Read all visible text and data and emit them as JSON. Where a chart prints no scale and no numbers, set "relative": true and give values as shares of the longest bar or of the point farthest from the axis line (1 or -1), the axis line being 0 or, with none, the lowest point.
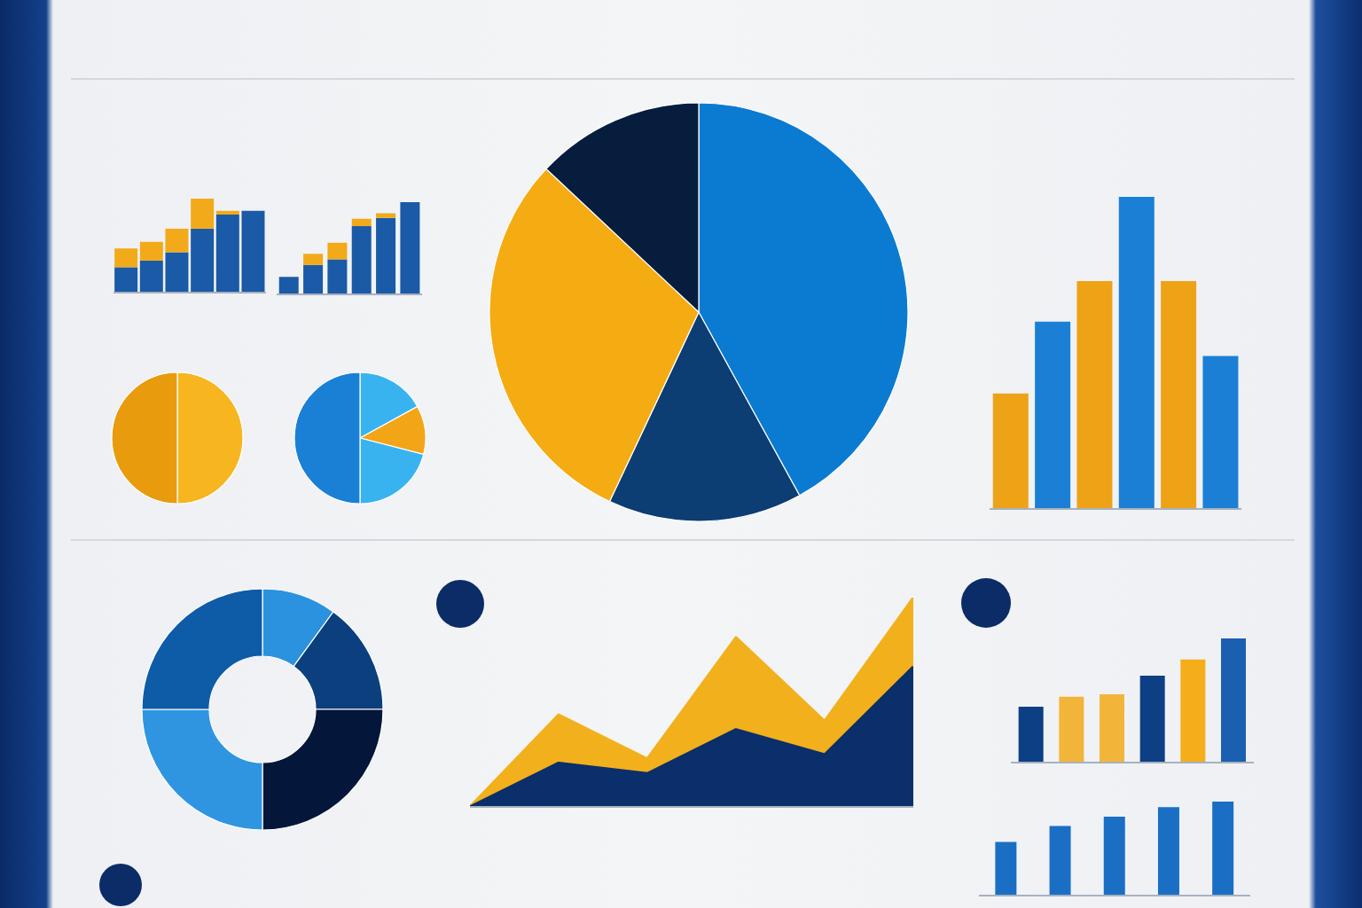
{
  "chart_data": [
    {
      "type": "bar",
      "stacked": true,
      "relative": true,
      "categories": [
        null,
        null,
        null,
        null,
        null,
        null
      ],
      "series": [
        {
          "color": "#1b5aa6",
          "values": [
            0.27,
            0.34,
            0.43,
            0.68,
            0.83,
            0.87
          ]
        },
        {
          "color": "#f2aa1a",
          "values": [
            0.2,
            0.2,
            0.25,
            0.32,
            0.04,
            null
          ]
        }
      ]
    },
    {
      "type": "bar",
      "stacked": true,
      "relative": true,
      "categories": [
        null,
        null,
        null,
        null,
        null,
        null
      ],
      "series": [
        {
          "color": "#1b5aa6",
          "values": [
            0.19,
            0.32,
            0.38,
            0.74,
            0.83,
            1.0
          ]
        },
        {
          "color": "#f2aa1a",
          "values": [
            null,
            0.12,
            0.18,
            0.08,
            0.05,
            null
          ]
        }
      ]
    },
    {
      "type": "pie",
      "categories": [
        null,
        null
      ],
      "values": [
        50,
        50
      ],
      "colors": [
        "#f7b520",
        "#e99b0e"
      ]
    },
    {
      "type": "pie",
      "categories": [
        null,
        null,
        null,
        null
      ],
      "values": [
        17,
        12,
        21,
        50
      ],
      "colors": [
        "#38b3f0",
        "#f2a516",
        "#38b3f0",
        "#1a80d6"
      ]
    },
    {
      "type": "pie",
      "categories": [
        null,
        null,
        null,
        null
      ],
      "values": [
        42,
        15,
        30,
        13
      ],
      "colors": [
        "#0b7bd2",
        "#0c3d73",
        "#f5ab12",
        "#061d3d"
      ]
    },
    {
      "type": "bar",
      "relative": true,
      "categories": [
        null,
        null,
        null,
        null,
        null,
        null
      ],
      "values": [
        0.37,
        0.6,
        0.73,
        1.0,
        0.73,
        0.49
      ],
      "colors": [
        "#eea316",
        "#1b7fd6",
        "#eea316",
        "#1b7fd6",
        "#eea316",
        "#1b7fd6"
      ]
    },
    {
      "type": "donut",
      "categories": [
        null,
        null,
        null,
        null,
        null
      ],
      "values": [
        10,
        15,
        25,
        25,
        25
      ],
      "colors": [
        "#2a92de",
        "#0b3f7e",
        "#04173a",
        "#2f95e0",
        "#0e5ba8"
      ]
    },
    {
      "type": "area",
      "relative": true,
      "categories": [
        null,
        null,
        null,
        null,
        null,
        null
      ],
      "series": [
        {
          "color": "#f2b01c",
          "values": [
            0,
            0.44,
            0.23,
            0.81,
            0.41,
            1.0
          ]
        },
        {
          "color": "#0a2f6a",
          "values": [
            0,
            0.21,
            0.16,
            0.37,
            0.25,
            0.67
          ]
        }
      ]
    },
    {
      "type": "bar",
      "relative": true,
      "categories": [
        null,
        null,
        null,
        null,
        null,
        null
      ],
      "values": [
        0.45,
        0.53,
        0.55,
        0.7,
        0.83,
        1.0
      ],
      "colors": [
        "#0d3f85",
        "#f2b53a",
        "#f2b53a",
        "#0d3f85",
        "#f5ad1a",
        "#1a5fb0"
      ]
    },
    {
      "type": "bar",
      "relative": true,
      "categories": [
        null,
        null,
        null,
        null,
        null
      ],
      "values": [
        0.57,
        0.74,
        0.84,
        0.94,
        1.0
      ],
      "color": "#1a6fc4"
    }
  ]
}
